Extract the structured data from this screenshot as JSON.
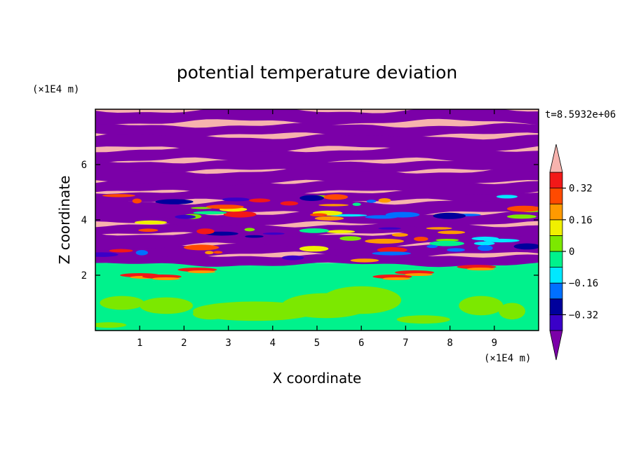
{
  "chart_data": {
    "type": "heatmap",
    "title": "potential temperature deviation",
    "xlabel": "X coordinate",
    "ylabel": "Z coordinate",
    "x_unit": "(×1E4 m)",
    "y_unit": "(×1E4 m)",
    "time_label": "t=8.5932e+06",
    "xlim": [
      0,
      10
    ],
    "ylim": [
      0,
      8
    ],
    "x_ticks": [
      1,
      2,
      3,
      4,
      5,
      6,
      7,
      8,
      9
    ],
    "y_ticks": [
      2,
      4,
      6
    ],
    "colorbar": {
      "levels": [
        -0.4,
        -0.32,
        -0.24,
        -0.16,
        -0.08,
        0,
        0.08,
        0.16,
        0.24,
        0.32,
        0.4
      ],
      "tick_labels": [
        "0.32",
        "0.16",
        "0",
        "−0.16",
        "−0.32"
      ],
      "tick_values": [
        0.32,
        0.16,
        0,
        -0.16,
        -0.32
      ],
      "colors_low_to_high": [
        "#7b00a8",
        "#3a00c8",
        "#00009c",
        "#0070ff",
        "#00e8ff",
        "#00f28c",
        "#7ce800",
        "#f0f000",
        "#ff9a00",
        "#ff4a00",
        "#f21818",
        "#f7b3ae"
      ],
      "extend": "both"
    },
    "layers": [
      {
        "z": [
          0.0,
          2.3
        ],
        "value": 0.0,
        "note": "mostly green layer below ~2.3"
      },
      {
        "z": [
          2.3,
          2.4
        ],
        "value": 0.0
      },
      {
        "z": [
          2.4,
          8.0
        ],
        "value": "alternating bands of approx -0.4 and +0.4"
      }
    ]
  }
}
